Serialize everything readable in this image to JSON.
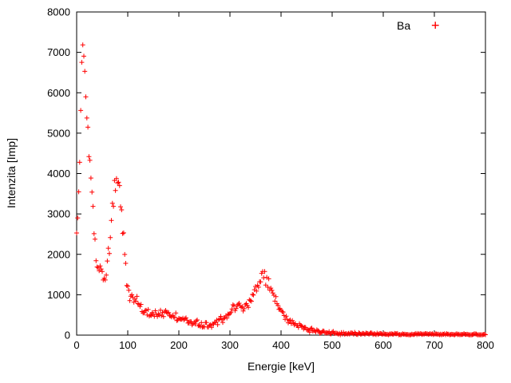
{
  "chart_data": {
    "type": "scatter",
    "title": "",
    "xlabel": "Energie [keV]",
    "ylabel": "Intenzita [Imp]",
    "xlim": [
      0,
      800
    ],
    "ylim": [
      0,
      8000
    ],
    "xticks": [
      0,
      100,
      200,
      300,
      400,
      500,
      600,
      700,
      800
    ],
    "yticks": [
      0,
      1000,
      2000,
      3000,
      4000,
      5000,
      6000,
      7000,
      8000
    ],
    "grid": false,
    "legend_position": "top-right-inside",
    "axis_color": "#000000",
    "series": [
      {
        "name": "Ba",
        "marker": "plus",
        "marker_glyph": "+",
        "color": "#ff0000",
        "step_keV": 2,
        "noise_coeff": 5,
        "anchors": [
          [
            0,
            2500
          ],
          [
            3,
            3200
          ],
          [
            6,
            4500
          ],
          [
            9,
            6200
          ],
          [
            12,
            7000
          ],
          [
            15,
            6800
          ],
          [
            18,
            6000
          ],
          [
            22,
            5000
          ],
          [
            26,
            4200
          ],
          [
            30,
            3600
          ],
          [
            34,
            2600
          ],
          [
            38,
            1900
          ],
          [
            42,
            1700
          ],
          [
            46,
            1800
          ],
          [
            50,
            1500
          ],
          [
            54,
            1350
          ],
          [
            58,
            1600
          ],
          [
            62,
            2000
          ],
          [
            66,
            2500
          ],
          [
            70,
            3100
          ],
          [
            74,
            3600
          ],
          [
            78,
            3850
          ],
          [
            82,
            3800
          ],
          [
            86,
            3400
          ],
          [
            90,
            2800
          ],
          [
            94,
            2100
          ],
          [
            98,
            1400
          ],
          [
            102,
            1000
          ],
          [
            106,
            850
          ],
          [
            110,
            870
          ],
          [
            115,
            900
          ],
          [
            120,
            820
          ],
          [
            126,
            700
          ],
          [
            132,
            620
          ],
          [
            138,
            550
          ],
          [
            144,
            530
          ],
          [
            150,
            560
          ],
          [
            156,
            580
          ],
          [
            162,
            590
          ],
          [
            168,
            570
          ],
          [
            174,
            600
          ],
          [
            180,
            560
          ],
          [
            186,
            510
          ],
          [
            192,
            470
          ],
          [
            198,
            430
          ],
          [
            205,
            400
          ],
          [
            212,
            370
          ],
          [
            220,
            330
          ],
          [
            228,
            300
          ],
          [
            236,
            280
          ],
          [
            244,
            265
          ],
          [
            252,
            255
          ],
          [
            260,
            265
          ],
          [
            268,
            290
          ],
          [
            276,
            330
          ],
          [
            284,
            380
          ],
          [
            292,
            440
          ],
          [
            300,
            540
          ],
          [
            308,
            640
          ],
          [
            314,
            690
          ],
          [
            320,
            670
          ],
          [
            326,
            650
          ],
          [
            332,
            700
          ],
          [
            338,
            820
          ],
          [
            344,
            960
          ],
          [
            350,
            1150
          ],
          [
            356,
            1300
          ],
          [
            362,
            1420
          ],
          [
            366,
            1450
          ],
          [
            370,
            1400
          ],
          [
            374,
            1330
          ],
          [
            378,
            1240
          ],
          [
            382,
            1130
          ],
          [
            386,
            1010
          ],
          [
            390,
            880
          ],
          [
            394,
            760
          ],
          [
            398,
            650
          ],
          [
            404,
            540
          ],
          [
            410,
            460
          ],
          [
            416,
            390
          ],
          [
            422,
            330
          ],
          [
            428,
            280
          ],
          [
            434,
            240
          ],
          [
            440,
            205
          ],
          [
            446,
            175
          ],
          [
            452,
            150
          ],
          [
            458,
            130
          ],
          [
            465,
            110
          ],
          [
            472,
            95
          ],
          [
            480,
            80
          ],
          [
            488,
            68
          ],
          [
            496,
            58
          ],
          [
            505,
            50
          ],
          [
            515,
            44
          ],
          [
            525,
            40
          ],
          [
            540,
            35
          ],
          [
            560,
            30
          ],
          [
            580,
            27
          ],
          [
            600,
            25
          ],
          [
            630,
            22
          ],
          [
            660,
            20
          ],
          [
            700,
            18
          ],
          [
            740,
            16
          ],
          [
            800,
            14
          ]
        ]
      }
    ]
  }
}
